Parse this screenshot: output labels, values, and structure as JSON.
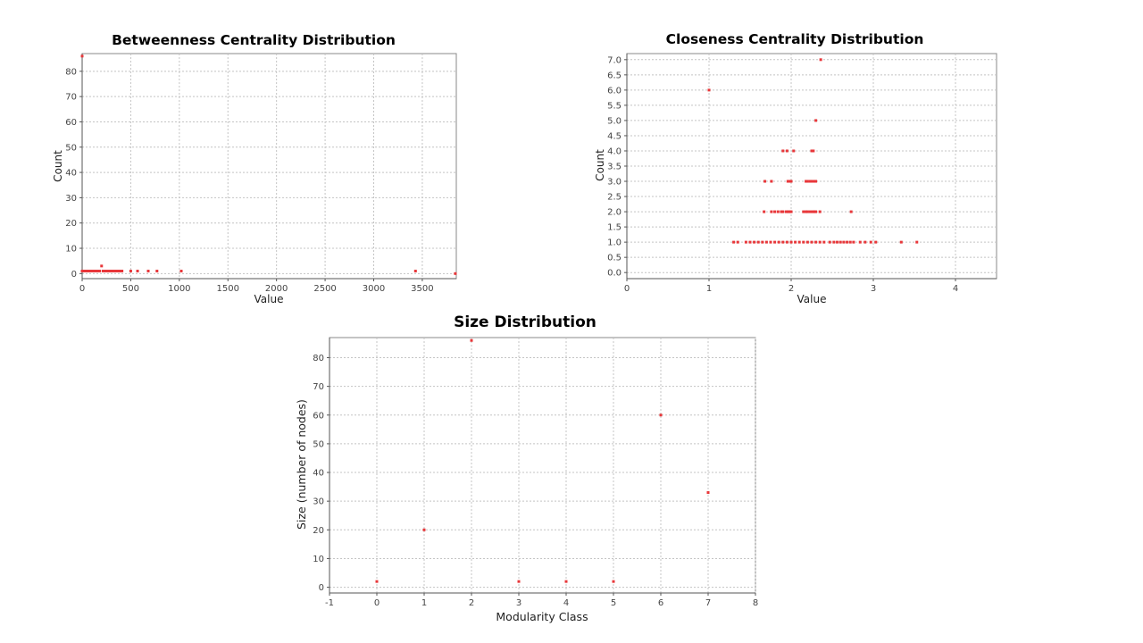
{
  "chart_data": [
    {
      "type": "scatter",
      "title": "Betweenness Centrality Distribution",
      "xlabel": "Value",
      "ylabel": "Count",
      "xlim": [
        0,
        3850
      ],
      "ylim": [
        -2,
        87
      ],
      "xticks": [
        0,
        500,
        1000,
        1500,
        2000,
        2500,
        3000,
        3500
      ],
      "yticks": [
        0,
        10,
        20,
        30,
        40,
        50,
        60,
        70,
        80
      ],
      "grid": true,
      "color": "#e8373a",
      "points": [
        [
          0,
          86
        ],
        [
          0,
          1
        ],
        [
          15,
          1
        ],
        [
          30,
          1
        ],
        [
          45,
          1
        ],
        [
          60,
          1
        ],
        [
          75,
          1
        ],
        [
          90,
          1
        ],
        [
          105,
          1
        ],
        [
          120,
          1
        ],
        [
          135,
          1
        ],
        [
          150,
          1
        ],
        [
          165,
          1
        ],
        [
          180,
          1
        ],
        [
          200,
          3
        ],
        [
          215,
          1
        ],
        [
          230,
          1
        ],
        [
          245,
          1
        ],
        [
          260,
          1
        ],
        [
          275,
          1
        ],
        [
          290,
          1
        ],
        [
          305,
          1
        ],
        [
          320,
          1
        ],
        [
          335,
          1
        ],
        [
          350,
          1
        ],
        [
          365,
          1
        ],
        [
          380,
          1
        ],
        [
          395,
          1
        ],
        [
          410,
          1
        ],
        [
          500,
          1
        ],
        [
          570,
          1
        ],
        [
          680,
          1
        ],
        [
          770,
          1
        ],
        [
          1020,
          1
        ],
        [
          3430,
          1
        ],
        [
          3840,
          0
        ]
      ]
    },
    {
      "type": "scatter",
      "title": "Closeness Centrality Distribution",
      "xlabel": "Value",
      "ylabel": "Count",
      "xlim": [
        0,
        4.5
      ],
      "ylim": [
        -0.2,
        7.2
      ],
      "xticks": [
        0,
        1,
        2,
        3,
        4
      ],
      "yticks": [
        "0.0",
        "0.5",
        "1.0",
        "1.5",
        "2.0",
        "2.5",
        "3.0",
        "3.5",
        "4.0",
        "4.5",
        "5.0",
        "5.5",
        "6.0",
        "6.5",
        "7.0"
      ],
      "grid": true,
      "color": "#e8373a",
      "points": [
        [
          2.36,
          7
        ],
        [
          1.0,
          6
        ],
        [
          2.3,
          5
        ],
        [
          1.9,
          4
        ],
        [
          1.95,
          4
        ],
        [
          2.03,
          4
        ],
        [
          2.25,
          4
        ],
        [
          2.27,
          4
        ],
        [
          1.68,
          3
        ],
        [
          1.76,
          3
        ],
        [
          1.96,
          3
        ],
        [
          1.98,
          3
        ],
        [
          2.0,
          3
        ],
        [
          2.18,
          3
        ],
        [
          2.2,
          3
        ],
        [
          2.23,
          3
        ],
        [
          2.25,
          3
        ],
        [
          2.28,
          3
        ],
        [
          2.3,
          3
        ],
        [
          1.67,
          2
        ],
        [
          1.76,
          2
        ],
        [
          1.8,
          2
        ],
        [
          1.84,
          2
        ],
        [
          1.88,
          2
        ],
        [
          1.9,
          2
        ],
        [
          1.94,
          2
        ],
        [
          1.96,
          2
        ],
        [
          1.98,
          2
        ],
        [
          2.0,
          2
        ],
        [
          2.15,
          2
        ],
        [
          2.18,
          2
        ],
        [
          2.2,
          2
        ],
        [
          2.23,
          2
        ],
        [
          2.26,
          2
        ],
        [
          2.28,
          2
        ],
        [
          2.3,
          2
        ],
        [
          2.35,
          2
        ],
        [
          2.73,
          2
        ],
        [
          1.3,
          1
        ],
        [
          1.35,
          1
        ],
        [
          1.45,
          1
        ],
        [
          1.5,
          1
        ],
        [
          1.55,
          1
        ],
        [
          1.6,
          1
        ],
        [
          1.65,
          1
        ],
        [
          1.7,
          1
        ],
        [
          1.75,
          1
        ],
        [
          1.8,
          1
        ],
        [
          1.85,
          1
        ],
        [
          1.9,
          1
        ],
        [
          1.95,
          1
        ],
        [
          2.0,
          1
        ],
        [
          2.05,
          1
        ],
        [
          2.1,
          1
        ],
        [
          2.15,
          1
        ],
        [
          2.2,
          1
        ],
        [
          2.25,
          1
        ],
        [
          2.3,
          1
        ],
        [
          2.35,
          1
        ],
        [
          2.4,
          1
        ],
        [
          2.47,
          1
        ],
        [
          2.52,
          1
        ],
        [
          2.56,
          1
        ],
        [
          2.6,
          1
        ],
        [
          2.64,
          1
        ],
        [
          2.68,
          1
        ],
        [
          2.72,
          1
        ],
        [
          2.76,
          1
        ],
        [
          2.84,
          1
        ],
        [
          2.9,
          1
        ],
        [
          2.97,
          1
        ],
        [
          3.03,
          1
        ],
        [
          3.34,
          1
        ],
        [
          3.53,
          1
        ]
      ]
    },
    {
      "type": "scatter",
      "title": "Size Distribution",
      "xlabel": "Modularity Class",
      "ylabel": "Size (number of nodes)",
      "xlim": [
        -1,
        8
      ],
      "ylim": [
        -2,
        87
      ],
      "xticks": [
        -1,
        0,
        1,
        2,
        3,
        4,
        5,
        6,
        7,
        8
      ],
      "yticks": [
        0,
        10,
        20,
        30,
        40,
        50,
        60,
        70,
        80
      ],
      "grid": true,
      "color": "#e8373a",
      "points": [
        [
          0,
          2
        ],
        [
          1,
          20
        ],
        [
          2,
          86
        ],
        [
          3,
          2
        ],
        [
          4,
          2
        ],
        [
          5,
          2
        ],
        [
          6,
          60
        ],
        [
          7,
          33
        ]
      ]
    }
  ]
}
